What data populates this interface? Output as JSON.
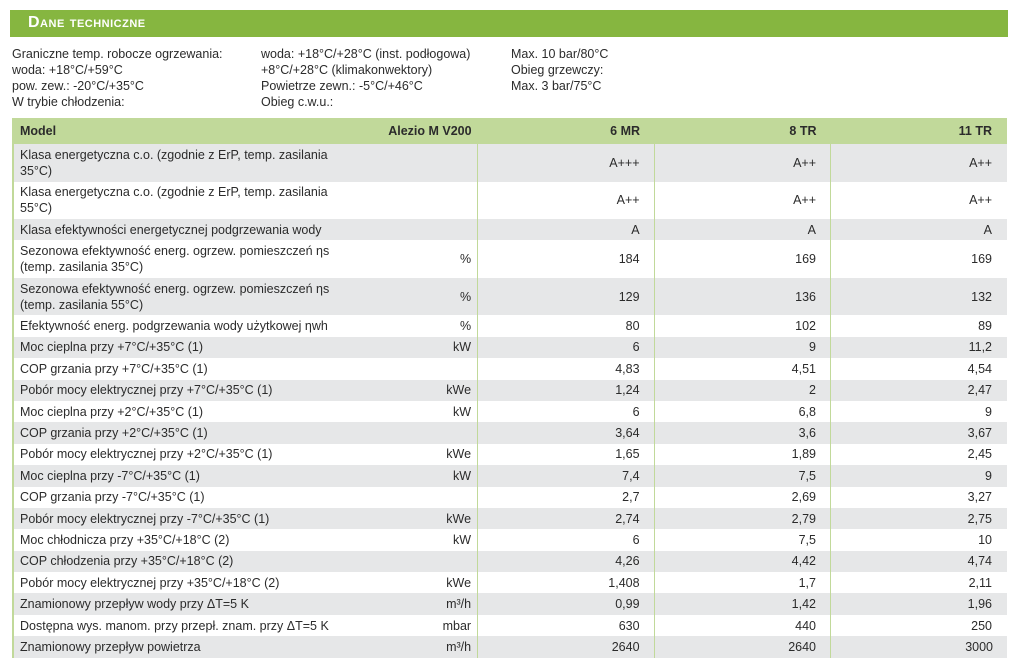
{
  "title": "Dane techniczne",
  "info": {
    "col1": [
      "Graniczne temp. robocze ogrzewania:",
      "woda: +18°C/+59°C",
      "pow. zew.: -20°C/+35°C",
      "W trybie chłodzenia:"
    ],
    "col2": [
      "woda: +18°C/+28°C (inst. podłogowa)",
      "+8°C/+28°C (klimakonwektory)",
      "Powietrze zewn.: -5°C/+46°C",
      "Obieg c.w.u.:"
    ],
    "col3": [
      "Max. 10 bar/80°C",
      "Obieg grzewczy:",
      "Max. 3 bar/75°C"
    ]
  },
  "table": {
    "header": {
      "label": "Model",
      "series": "Alezio M V200",
      "models": [
        "6 MR",
        "8 TR",
        "11 TR"
      ]
    },
    "rows": [
      {
        "label": "Klasa energetyczna c.o. (zgodnie z ErP, temp. zasilania 35°C)",
        "unit": "",
        "values": [
          "A+++",
          "A++",
          "A++"
        ]
      },
      {
        "label": "Klasa energetyczna c.o. (zgodnie z ErP, temp. zasilania 55°C)",
        "unit": "",
        "values": [
          "A++",
          "A++",
          "A++"
        ]
      },
      {
        "label": "Klasa efektywności energetycznej podgrzewania wody",
        "unit": "",
        "values": [
          "A",
          "A",
          "A"
        ]
      },
      {
        "label": "Sezonowa efektywność energ. ogrzew. pomieszczeń ηs (temp. zasilania 35°C)",
        "unit": "%",
        "values": [
          "184",
          "169",
          "169"
        ]
      },
      {
        "label": "Sezonowa efektywność energ. ogrzew. pomieszczeń ηs (temp. zasilania 55°C)",
        "unit": "%",
        "values": [
          "129",
          "136",
          "132"
        ]
      },
      {
        "label": "Efektywność energ. podgrzewania wody użytkowej ηwh",
        "unit": "%",
        "values": [
          "80",
          "102",
          "89"
        ]
      },
      {
        "label": "Moc cieplna przy +7°C/+35°C (1)",
        "unit": "kW",
        "values": [
          "6",
          "9",
          "11,2"
        ]
      },
      {
        "label": "COP grzania przy +7°C/+35°C (1)",
        "unit": "",
        "values": [
          "4,83",
          "4,51",
          "4,54"
        ]
      },
      {
        "label": "Pobór mocy elektrycznej przy +7°C/+35°C (1)",
        "unit": "kWe",
        "values": [
          "1,24",
          "2",
          "2,47"
        ]
      },
      {
        "label": "Moc cieplna przy +2°C/+35°C (1)",
        "unit": "kW",
        "values": [
          "6",
          "6,8",
          "9"
        ]
      },
      {
        "label": "COP grzania przy +2°C/+35°C (1)",
        "unit": "",
        "values": [
          "3,64",
          "3,6",
          "3,67"
        ]
      },
      {
        "label": "Pobór mocy elektrycznej przy +2°C/+35°C (1)",
        "unit": "kWe",
        "values": [
          "1,65",
          "1,89",
          "2,45"
        ]
      },
      {
        "label": "Moc cieplna przy -7°C/+35°C (1)",
        "unit": "kW",
        "values": [
          "7,4",
          "7,5",
          "9"
        ]
      },
      {
        "label": "COP grzania przy -7°C/+35°C (1)",
        "unit": "",
        "values": [
          "2,7",
          "2,69",
          "3,27"
        ]
      },
      {
        "label": "Pobór mocy elektrycznej przy -7°C/+35°C (1)",
        "unit": "kWe",
        "values": [
          "2,74",
          "2,79",
          "2,75"
        ]
      },
      {
        "label": "Moc chłodnicza przy +35°C/+18°C (2)",
        "unit": "kW",
        "values": [
          "6",
          "7,5",
          "10"
        ]
      },
      {
        "label": "COP chłodzenia przy +35°C/+18°C (2)",
        "unit": "",
        "values": [
          "4,26",
          "4,42",
          "4,74"
        ]
      },
      {
        "label": "Pobór mocy elektrycznej przy +35°C/+18°C (2)",
        "unit": "kWe",
        "values": [
          "1,408",
          "1,7",
          "2,11"
        ]
      },
      {
        "label": "Znamionowy przepływ wody przy ΔT=5 K",
        "unit": "m³/h",
        "values": [
          "0,99",
          "1,42",
          "1,96"
        ]
      },
      {
        "label": "Dostępna wys. manom. przy przepł. znam. przy ΔT=5 K",
        "unit": "mbar",
        "values": [
          "630",
          "440",
          "250"
        ]
      },
      {
        "label": "Znamionowy przepływ powietrza",
        "unit": "m³/h",
        "values": [
          "2640",
          "2640",
          "3000"
        ]
      }
    ]
  }
}
